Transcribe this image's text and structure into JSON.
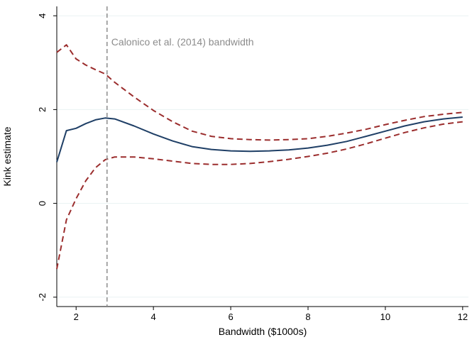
{
  "chart_data": {
    "type": "line",
    "title": "",
    "xlabel": "Bandwidth ($1000s)",
    "ylabel": "Kink estimate",
    "xlim": [
      1.5,
      12.15
    ],
    "ylim": [
      -2.2,
      4.2
    ],
    "x_ticks": [
      2,
      4,
      6,
      8,
      10,
      12
    ],
    "y_ticks": [
      -2,
      0,
      2,
      4
    ],
    "grid": "horizontal",
    "legend": "none",
    "series": [
      {
        "role": "estimate",
        "color": "#1f3f66",
        "dash": "solid",
        "x": [
          1.5,
          1.75,
          2.0,
          2.25,
          2.5,
          2.75,
          3.0,
          3.5,
          4.0,
          4.5,
          5.0,
          5.5,
          6.0,
          6.5,
          7.0,
          7.5,
          8.0,
          8.5,
          9.0,
          9.5,
          10.0,
          10.5,
          11.0,
          11.5,
          12.0
        ],
        "y": [
          0.88,
          1.55,
          1.6,
          1.7,
          1.78,
          1.82,
          1.8,
          1.65,
          1.48,
          1.33,
          1.21,
          1.15,
          1.12,
          1.11,
          1.12,
          1.14,
          1.18,
          1.24,
          1.32,
          1.43,
          1.54,
          1.65,
          1.74,
          1.8,
          1.84
        ]
      },
      {
        "role": "upper-ci",
        "color": "#9b2d2d",
        "dash": "dashed",
        "x": [
          1.5,
          1.75,
          2.0,
          2.25,
          2.5,
          2.75,
          3.0,
          3.5,
          4.0,
          4.5,
          5.0,
          5.5,
          6.0,
          6.5,
          7.0,
          7.5,
          8.0,
          8.5,
          9.0,
          9.5,
          10.0,
          10.5,
          11.0,
          11.5,
          12.0
        ],
        "y": [
          3.22,
          3.38,
          3.08,
          2.95,
          2.85,
          2.76,
          2.58,
          2.27,
          1.98,
          1.74,
          1.54,
          1.43,
          1.38,
          1.36,
          1.35,
          1.36,
          1.38,
          1.43,
          1.5,
          1.58,
          1.68,
          1.77,
          1.85,
          1.9,
          1.94
        ]
      },
      {
        "role": "lower-ci",
        "color": "#9b2d2d",
        "dash": "dashed",
        "x": [
          1.5,
          1.75,
          2.0,
          2.25,
          2.5,
          2.75,
          3.0,
          3.5,
          4.0,
          4.5,
          5.0,
          5.5,
          6.0,
          6.5,
          7.0,
          7.5,
          8.0,
          8.5,
          9.0,
          9.5,
          10.0,
          10.5,
          11.0,
          11.5,
          12.0
        ],
        "y": [
          -1.4,
          -0.35,
          0.1,
          0.48,
          0.76,
          0.93,
          0.99,
          0.99,
          0.95,
          0.9,
          0.85,
          0.83,
          0.83,
          0.85,
          0.89,
          0.94,
          1.0,
          1.07,
          1.16,
          1.27,
          1.39,
          1.51,
          1.61,
          1.69,
          1.74
        ]
      }
    ],
    "reference_line": {
      "x": 2.8,
      "color": "#8c8c8c",
      "dash": "dashed",
      "label": "Calonico et al. (2014) bandwidth"
    }
  }
}
